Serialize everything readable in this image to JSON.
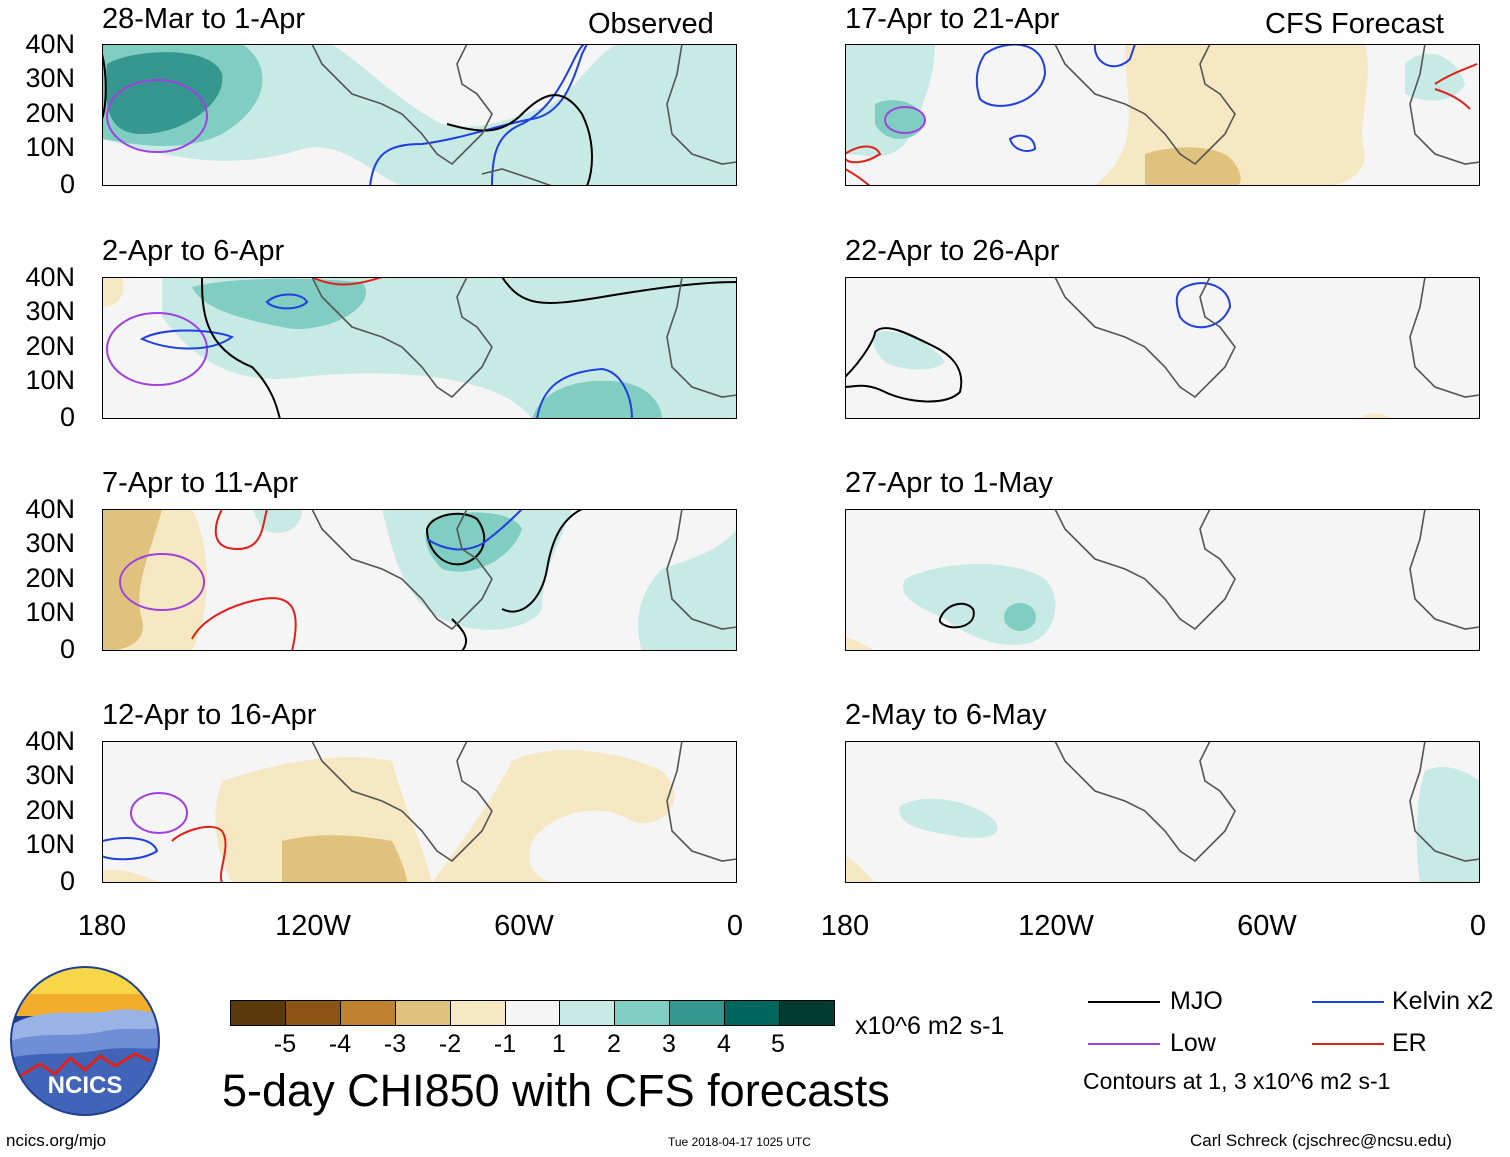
{
  "corner": {
    "observed": "Observed",
    "forecast": "CFS Forecast"
  },
  "panels_left": [
    {
      "title": "28-Mar to 1-Apr"
    },
    {
      "title": "2-Apr to 6-Apr"
    },
    {
      "title": "7-Apr to 11-Apr"
    },
    {
      "title": "12-Apr to 16-Apr"
    }
  ],
  "panels_right": [
    {
      "title": "17-Apr to 21-Apr"
    },
    {
      "title": "22-Apr to 26-Apr"
    },
    {
      "title": "27-Apr to 1-May"
    },
    {
      "title": "2-May to 6-May"
    }
  ],
  "lat_labels": [
    "40N",
    "30N",
    "20N",
    "10N",
    "0"
  ],
  "lon_labels": [
    "180",
    "120W",
    "60W",
    "0"
  ],
  "colorbar": {
    "colors": [
      "#5a3a0d",
      "#8c5414",
      "#bf8230",
      "#dfc27d",
      "#f6e8c3",
      "#f5f5f5",
      "#c7eae5",
      "#80cdc1",
      "#35978f",
      "#01665e",
      "#003c30"
    ],
    "labels": [
      "-5",
      "-4",
      "-3",
      "-2",
      "-1",
      "1",
      "2",
      "3",
      "4",
      "5"
    ],
    "units": "x10^6 m2 s-1"
  },
  "title": "5-day CHI850 with CFS forecasts",
  "legend": {
    "items": [
      {
        "label": "MJO",
        "color": "#000000"
      },
      {
        "label": "Kelvin x2",
        "color": "#1f3fe0"
      },
      {
        "label": "Low",
        "color": "#a040e0"
      },
      {
        "label": "ER",
        "color": "#e0201a"
      }
    ],
    "note": "Contours at 1, 3 x10^6 m2 s-1"
  },
  "logo": {
    "text": "NCICS"
  },
  "footer": {
    "url": "ncics.org/mjo",
    "timestamp": "Tue 2018-04-17 1025 UTC",
    "credit": "Carl Schreck (cjschrec@ncsu.edu)"
  }
}
